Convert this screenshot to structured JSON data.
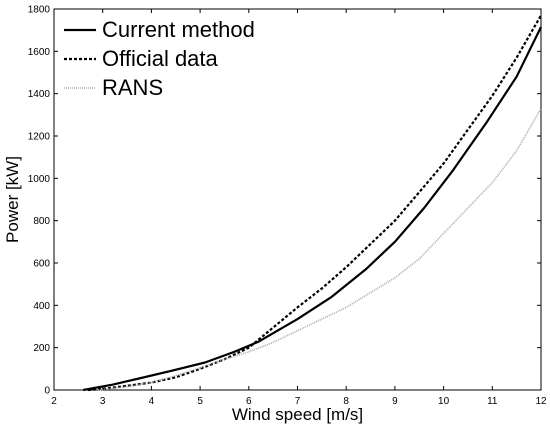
{
  "chart_data": {
    "type": "line",
    "xlabel": "Wind speed [m/s]",
    "ylabel": "Power [kW]",
    "xlim": [
      2,
      12
    ],
    "ylim": [
      0,
      1800
    ],
    "xticks": [
      2,
      3,
      4,
      5,
      6,
      7,
      8,
      9,
      10,
      11,
      12
    ],
    "yticks": [
      0,
      200,
      400,
      600,
      800,
      1000,
      1200,
      1400,
      1600,
      1800
    ],
    "grid": false,
    "legend_position": "top-left",
    "series": [
      {
        "name": "Current method",
        "style": "solid",
        "color": "#000000",
        "x": [
          2.6,
          3.2,
          3.7,
          4.4,
          5.1,
          5.7,
          6.2,
          7.0,
          7.7,
          8.4,
          9.0,
          9.6,
          10.2,
          10.9,
          11.5,
          12.0
        ],
        "y": [
          0,
          25,
          52,
          90,
          130,
          180,
          228,
          335,
          440,
          570,
          700,
          860,
          1040,
          1270,
          1480,
          1715
        ]
      },
      {
        "name": "Official data",
        "style": "dotted",
        "color": "#000000",
        "x": [
          2.7,
          3.0,
          3.5,
          4.0,
          4.5,
          5.0,
          5.5,
          6.0,
          6.5,
          7.0,
          7.5,
          8.0,
          8.5,
          9.0,
          9.5,
          10.0,
          10.5,
          11.0,
          11.5,
          12.0
        ],
        "y": [
          0,
          5,
          20,
          35,
          60,
          100,
          145,
          200,
          295,
          390,
          480,
          580,
          690,
          800,
          935,
          1070,
          1230,
          1390,
          1570,
          1770
        ]
      },
      {
        "name": "RANS",
        "style": "solid",
        "color": "#aaaaaa",
        "x": [
          2.9,
          3.5,
          4.0,
          4.5,
          5.0,
          5.5,
          6.0,
          6.5,
          7.0,
          7.5,
          8.0,
          8.5,
          9.0,
          9.5,
          10.0,
          10.5,
          11.0,
          11.5,
          12.0
        ],
        "y": [
          0,
          15,
          35,
          68,
          105,
          145,
          180,
          225,
          280,
          335,
          390,
          460,
          530,
          620,
          740,
          860,
          980,
          1130,
          1330
        ]
      }
    ]
  }
}
